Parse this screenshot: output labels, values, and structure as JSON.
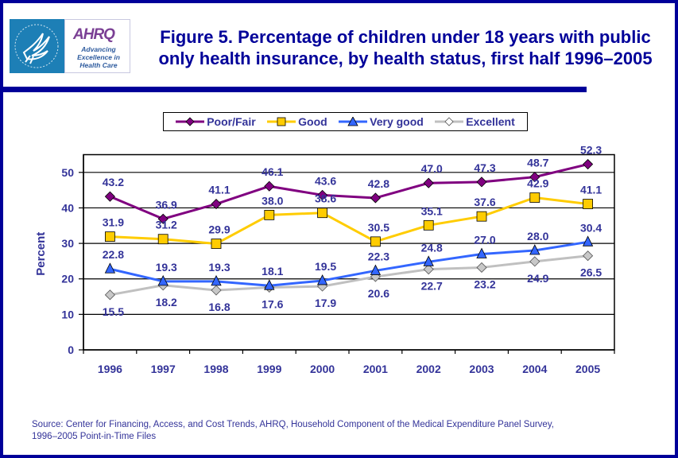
{
  "header": {
    "title_line1": "Figure 5. Percentage of children under 18 years with public",
    "title_line2": "only health insurance, by health status, first half 1996–2005",
    "logo": {
      "agency_mark": "AHRQ",
      "tagline_line1": "Advancing",
      "tagline_line2": "Excellence in",
      "tagline_line3": "Health Care",
      "hhs_icon": "hhs-eagle-icon"
    }
  },
  "colors": {
    "frame": "#000099",
    "text": "#333399",
    "poor_fair": "#800080",
    "good": "#FFCC00",
    "very_good": "#3366FF",
    "excellent": "#C0C0C0"
  },
  "chart_data": {
    "type": "line",
    "title": "Figure 5. Percentage of children under 18 years with public only health insurance, by health status, first half 1996–2005",
    "xlabel": "",
    "ylabel": "Percent",
    "ylim": [
      0,
      55
    ],
    "yticks": [
      0,
      10,
      20,
      30,
      40,
      50
    ],
    "grid": true,
    "legend_position": "top",
    "categories": [
      "1996",
      "1997",
      "1998",
      "1999",
      "2000",
      "2001",
      "2002",
      "2003",
      "2004",
      "2005"
    ],
    "series": [
      {
        "name": "Poor/Fair",
        "marker": "diamond",
        "color": "#800080",
        "label_position": "above",
        "values": [
          43.2,
          36.9,
          41.1,
          46.1,
          43.6,
          42.8,
          47.0,
          47.3,
          48.7,
          52.3
        ]
      },
      {
        "name": "Good",
        "marker": "square",
        "color": "#FFCC00",
        "label_position": "above",
        "values": [
          31.9,
          31.2,
          29.9,
          38.0,
          38.6,
          30.5,
          35.1,
          37.6,
          42.9,
          41.1
        ]
      },
      {
        "name": "Very good",
        "marker": "triangle",
        "color": "#3366FF",
        "label_position": "above",
        "values": [
          22.8,
          19.3,
          19.3,
          18.1,
          19.5,
          22.3,
          24.8,
          27.0,
          28.0,
          30.4
        ]
      },
      {
        "name": "Excellent",
        "marker": "diamond",
        "color": "#C0C0C0",
        "label_position": "below",
        "values": [
          15.5,
          18.2,
          16.8,
          17.6,
          17.9,
          20.6,
          22.7,
          23.2,
          24.9,
          26.5
        ]
      }
    ]
  },
  "footer": {
    "source_line1": "Source: Center for Financing, Access, and Cost Trends, AHRQ, Household Component of the Medical Expenditure Panel Survey,",
    "source_line2": "1996–2005 Point-in-Time Files"
  }
}
